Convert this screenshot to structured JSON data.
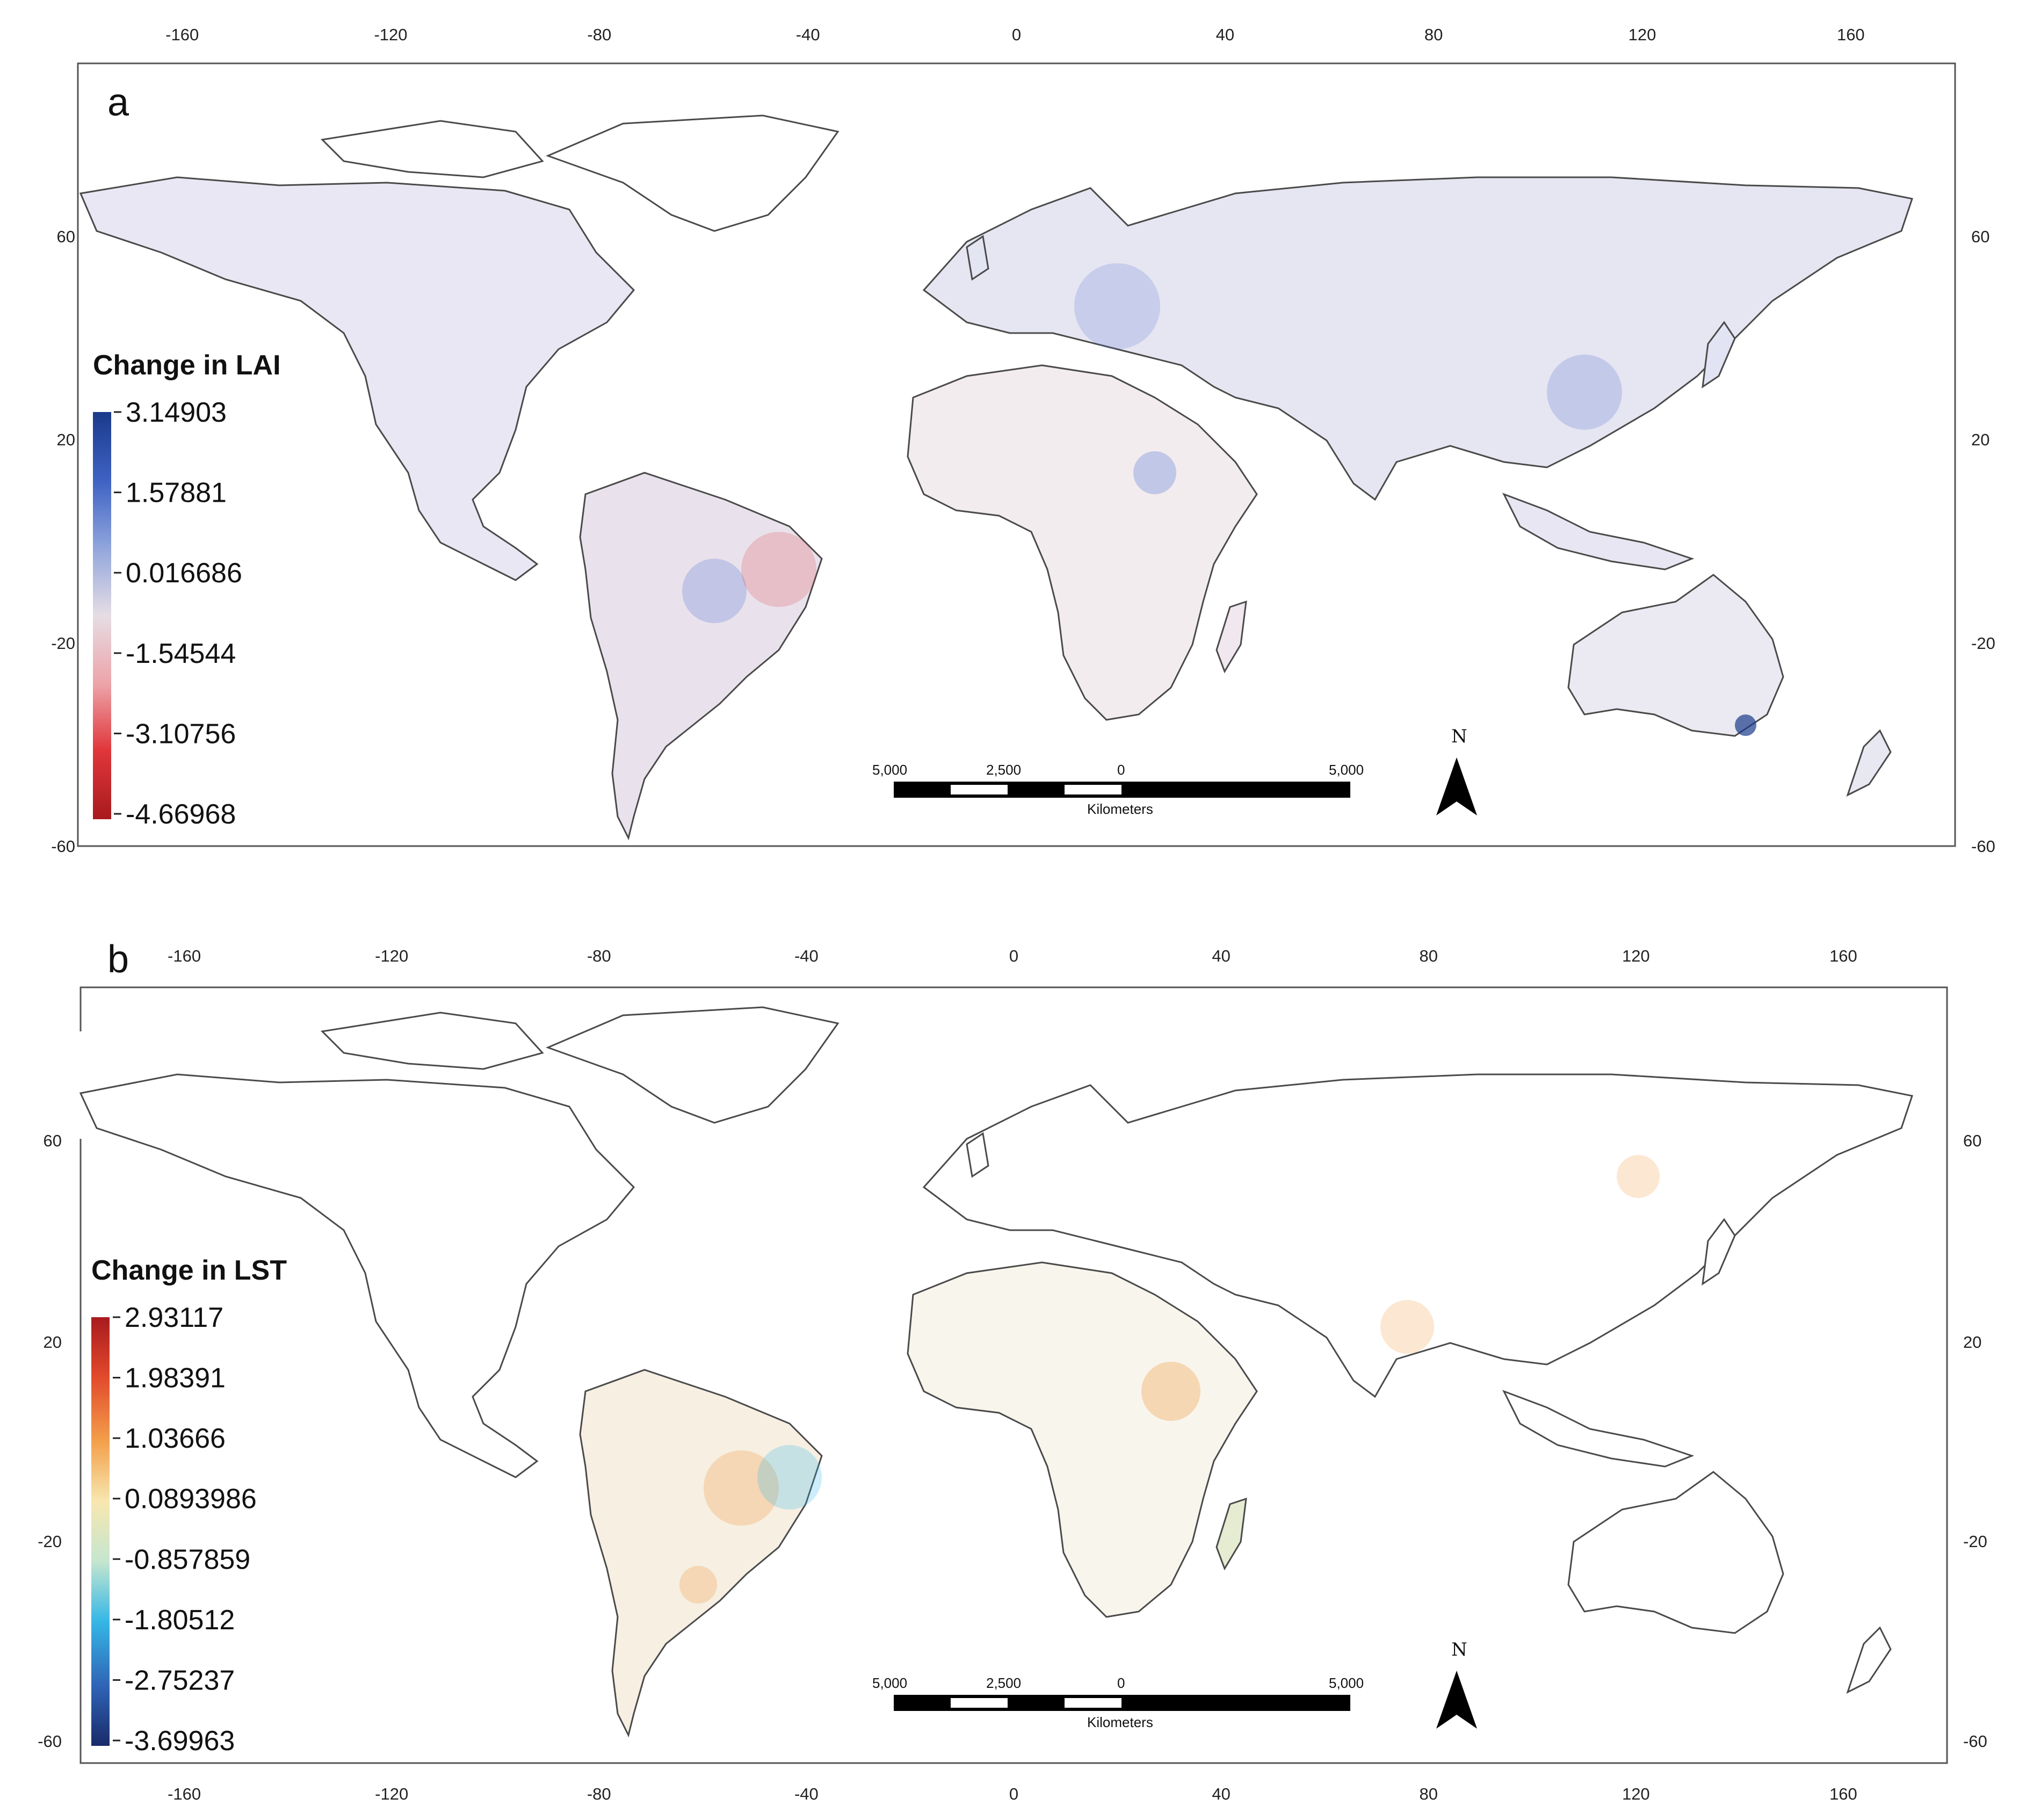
{
  "axes": {
    "x_ticks": [
      "-160",
      "-120",
      "-80",
      "-40",
      "0",
      "40",
      "80",
      "120",
      "160"
    ],
    "y_ticks": [
      "60",
      "20",
      "-20",
      "-60"
    ]
  },
  "panel_a": {
    "label": "a",
    "legend_title": "Change in LAI",
    "legend_values": [
      "3.14903",
      "1.57881",
      "0.016686",
      "-1.54544",
      "-3.10756",
      "-4.66968"
    ],
    "ramp_colors": [
      "#1a3a8a",
      "#3f63c4",
      "#8fa4dc",
      "#e6dde4",
      "#eca3a8",
      "#e0373b",
      "#a81a1e"
    ]
  },
  "panel_b": {
    "label": "b",
    "legend_title": "Change in LST",
    "legend_values": [
      "2.93117",
      "1.98391",
      "1.03666",
      "0.0893986",
      "-0.857859",
      "-1.80512",
      "-2.75237",
      "-3.69963"
    ],
    "ramp_colors": [
      "#a81a1e",
      "#e24a2c",
      "#f3a04b",
      "#f7e7b0",
      "#c5e6cf",
      "#35b7e6",
      "#2f64b6",
      "#1a2b6a"
    ]
  },
  "scale_bar": {
    "labels": [
      "5,000",
      "2,500",
      "0",
      "5,000"
    ],
    "unit": "Kilometers"
  },
  "north_arrow": {
    "label": "N"
  }
}
